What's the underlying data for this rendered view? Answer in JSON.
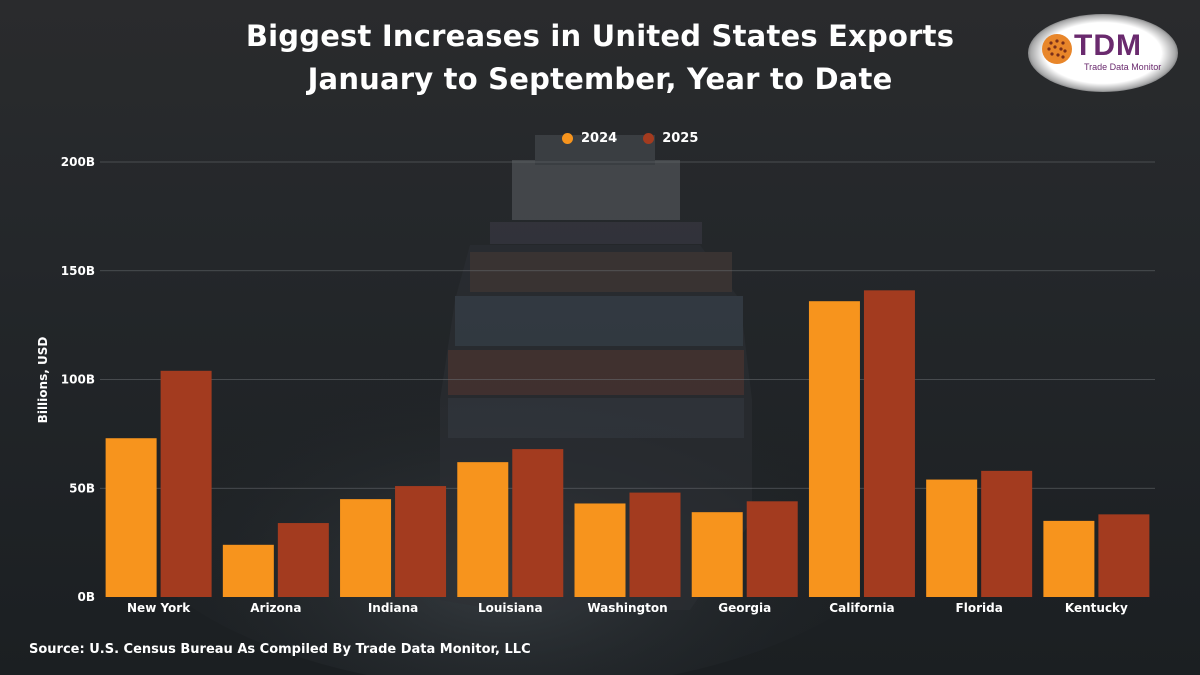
{
  "title": {
    "line1": "Biggest Increases in United States Exports",
    "line2": "January to September, Year to Date"
  },
  "logo": {
    "text": "TDM",
    "subtext": "Trade Data Monitor"
  },
  "source": "Source: U.S. Census Bureau As Compiled By Trade Data Monitor, LLC",
  "colors": {
    "series_2024": "#f7941d",
    "series_2025": "#a33b1f",
    "grid": "#6b6f73",
    "text": "#ffffff"
  },
  "chart_data": {
    "type": "bar",
    "title": "Biggest Increases in United States Exports January to September, Year to Date",
    "xlabel": "",
    "ylabel": "Billions, USD",
    "ylim": [
      0,
      200
    ],
    "yticks": [
      0,
      50,
      100,
      150,
      200
    ],
    "ytick_labels": [
      "0B",
      "50B",
      "100B",
      "150B",
      "200B"
    ],
    "grid": true,
    "legend_position": "top-center",
    "categories": [
      "New York",
      "Arizona",
      "Indiana",
      "Louisiana",
      "Washington",
      "Georgia",
      "California",
      "Florida",
      "Kentucky"
    ],
    "series": [
      {
        "name": "2024",
        "values": [
          73,
          24,
          45,
          62,
          43,
          39,
          136,
          54,
          35
        ]
      },
      {
        "name": "2025",
        "values": [
          104,
          34,
          51,
          68,
          48,
          44,
          141,
          58,
          38
        ]
      }
    ]
  }
}
